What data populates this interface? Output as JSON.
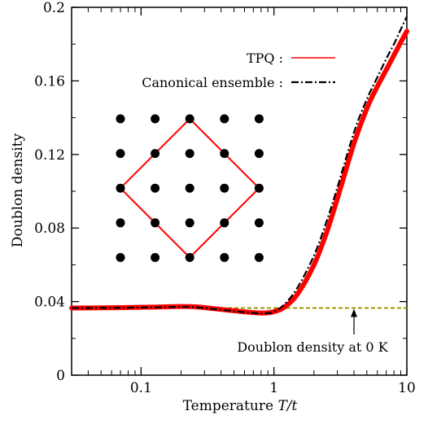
{
  "chart_data": {
    "type": "line",
    "xlabel_prefix": "Temperature ",
    "xlabel_var": "T/t",
    "ylabel": "Doublon density",
    "xscale": "log",
    "xlim": [
      0.03,
      10
    ],
    "ylim": [
      0,
      0.2
    ],
    "grid": false,
    "legend_position": "top-right",
    "x_ticks": [
      {
        "value": 0.1,
        "label": "0.1"
      },
      {
        "value": 1,
        "label": "1"
      },
      {
        "value": 10,
        "label": "10"
      }
    ],
    "y_ticks": [
      {
        "value": 0,
        "label": "0"
      },
      {
        "value": 0.04,
        "label": "0.04"
      },
      {
        "value": 0.08,
        "label": "0.08"
      },
      {
        "value": 0.12,
        "label": "0.12"
      },
      {
        "value": 0.16,
        "label": "0.16"
      },
      {
        "value": 0.2,
        "label": "0.2"
      }
    ],
    "series": [
      {
        "name": "TPQ :",
        "color": "#ff0000",
        "style": "solid-band",
        "x": [
          0.03,
          0.05,
          0.08,
          0.12,
          0.18,
          0.25,
          0.35,
          0.5,
          0.7,
          0.85,
          1.0,
          1.2,
          1.5,
          2.0,
          2.5,
          3.0,
          4.0,
          5.0,
          6.0,
          7.0,
          8.0,
          9.0,
          10.0
        ],
        "values": [
          0.0365,
          0.0366,
          0.0368,
          0.037,
          0.0373,
          0.0372,
          0.0362,
          0.035,
          0.034,
          0.0338,
          0.0345,
          0.037,
          0.044,
          0.06,
          0.078,
          0.096,
          0.126,
          0.145,
          0.157,
          0.166,
          0.174,
          0.181,
          0.187
        ]
      },
      {
        "name": "Canonical ensemble :",
        "color": "#000000",
        "style": "dash-dot",
        "x": [
          0.03,
          0.05,
          0.08,
          0.12,
          0.18,
          0.25,
          0.35,
          0.5,
          0.7,
          0.85,
          1.0,
          1.2,
          1.5,
          2.0,
          2.5,
          3.0,
          4.0,
          5.0,
          6.0,
          7.0,
          8.0,
          9.0,
          10.0
        ],
        "values": [
          0.0365,
          0.0366,
          0.0367,
          0.0369,
          0.0371,
          0.037,
          0.036,
          0.0348,
          0.0338,
          0.0336,
          0.0346,
          0.0385,
          0.0475,
          0.065,
          0.084,
          0.102,
          0.132,
          0.15,
          0.162,
          0.172,
          0.18,
          0.188,
          0.195
        ]
      }
    ],
    "reference_line": {
      "y": 0.0365,
      "color": "#999900",
      "style": "dashed"
    },
    "annotation": {
      "text": "Doublon density at 0 K",
      "arrow_x": 4.0,
      "arrow_y": 0.0365
    },
    "inset": {
      "dot_rows": 5,
      "dot_cols": 5,
      "dot_color": "#000000",
      "square_color": "#ff0000"
    }
  }
}
